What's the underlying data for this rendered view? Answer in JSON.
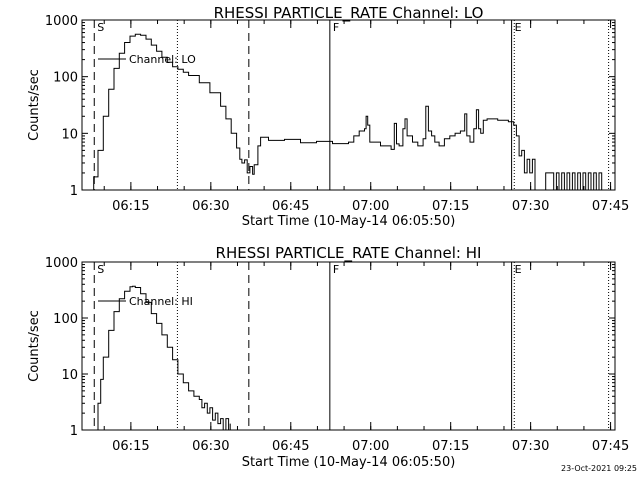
{
  "footer_timestamp": "23-Oct-2021 09:25",
  "chart_data": [
    {
      "type": "line",
      "title": "RHESSI PARTICLE_RATE Channel: LO",
      "xlabel": "Start Time (10-May-14 06:05:50)",
      "ylabel": "Counts/sec",
      "y_scale": "log",
      "ylim": [
        1,
        1000
      ],
      "x_units": "minutes after 06:05:50",
      "xlim": [
        0,
        100
      ],
      "x_ticks": [
        {
          "label": "06:15",
          "x": 9.17
        },
        {
          "label": "06:30",
          "x": 24.17
        },
        {
          "label": "06:45",
          "x": 39.17
        },
        {
          "label": "07:00",
          "x": 54.17
        },
        {
          "label": "07:15",
          "x": 69.17
        },
        {
          "label": "07:30",
          "x": 84.17
        },
        {
          "label": "07:45",
          "x": 99.17
        }
      ],
      "y_ticks": [
        {
          "label": "1",
          "v": 1
        },
        {
          "label": "10",
          "v": 10
        },
        {
          "label": "100",
          "v": 100
        },
        {
          "label": "1000",
          "v": 1000
        }
      ],
      "legend": "Channel: LO",
      "markers": [
        {
          "label": "S",
          "x": 2.3,
          "style": "dashed"
        },
        {
          "label": "",
          "x": 17.9,
          "style": "dotted"
        },
        {
          "label": "",
          "x": 31.3,
          "style": "dashed"
        },
        {
          "label": "F",
          "x": 46.5,
          "style": "solid"
        },
        {
          "label": "E",
          "x": 80.6,
          "style": "solid"
        },
        {
          "label": "",
          "x": 81.1,
          "style": "dotted"
        },
        {
          "label": "",
          "x": 98.8,
          "style": "dotted"
        }
      ],
      "x": [
        1.5,
        2.2,
        3.0,
        4.0,
        5.0,
        6.0,
        7.0,
        8.0,
        9.0,
        10.0,
        11.0,
        12.0,
        13.0,
        14.0,
        15.0,
        16.0,
        17.0,
        18.0,
        19.0,
        20.0,
        22.0,
        24.0,
        26.0,
        27.0,
        28.0,
        29.0,
        29.6,
        30.0,
        30.5,
        31.0,
        31.5,
        32.0,
        32.3,
        33.0,
        33.5,
        35.0,
        38.0,
        41.0,
        44.0,
        47.0,
        50.0,
        51.0,
        52.0,
        53.0,
        53.3,
        53.6,
        54.0,
        56.0,
        58.0,
        58.6,
        59.0,
        59.5,
        60.2,
        60.6,
        61.0,
        62.0,
        63.0,
        64.0,
        64.5,
        65.0,
        65.6,
        66.2,
        67.0,
        68.0,
        69.0,
        70.0,
        71.0,
        71.8,
        72.2,
        72.8,
        73.5,
        74.0,
        74.4,
        74.8,
        75.3,
        76.0,
        78.0,
        80.0,
        81.0,
        81.5,
        82.0,
        82.5,
        83.0,
        83.5,
        84.0,
        84.5,
        85.0,
        86.0,
        87.0,
        88.0,
        88.5,
        89.0,
        89.5,
        90.0,
        90.5,
        91.0,
        91.5,
        92.0,
        92.5,
        93.0,
        93.5,
        94.0,
        94.5,
        95.0,
        95.5,
        96.0,
        96.5,
        97.0,
        97.5,
        98.0
      ],
      "y": [
        1.0,
        1.7,
        5.0,
        20,
        60,
        140,
        260,
        400,
        520,
        560,
        540,
        460,
        360,
        280,
        220,
        180,
        150,
        135,
        120,
        105,
        78,
        52,
        30,
        18,
        10,
        5.5,
        3.5,
        3.0,
        3.4,
        2.0,
        2.6,
        1.9,
        2.8,
        6.0,
        8.5,
        7.5,
        7.8,
        6.8,
        7.2,
        6.6,
        7.0,
        9.0,
        11.0,
        12.0,
        20.0,
        14.0,
        7.0,
        6.0,
        5.2,
        15.0,
        6.5,
        6.0,
        12.0,
        18.0,
        9.0,
        7.0,
        6.0,
        8.0,
        30.0,
        11.0,
        9.0,
        7.0,
        6.0,
        8.0,
        9.0,
        10.0,
        11.0,
        22.0,
        9.0,
        7.0,
        12.0,
        26.0,
        12.0,
        10.0,
        17.0,
        18.0,
        17.0,
        16.0,
        14.0,
        9.0,
        4.0,
        5.0,
        2.0,
        3.5,
        2.0,
        3.5,
        1.0,
        1.0,
        2.0,
        2.0,
        1.0,
        2.0,
        1.0,
        2.0,
        1.0,
        2.0,
        1.0,
        2.0,
        1.0,
        2.0,
        1.0,
        2.0,
        1.0,
        2.0,
        1.0,
        2.0,
        1.0,
        2.0,
        1.0,
        1.0
      ]
    },
    {
      "type": "line",
      "title": "RHESSI PARTICLE_RATE Channel: HI",
      "xlabel": "Start Time (10-May-14 06:05:50)",
      "ylabel": "Counts/sec",
      "y_scale": "log",
      "ylim": [
        1,
        1000
      ],
      "x_units": "minutes after 06:05:50",
      "xlim": [
        0,
        100
      ],
      "x_ticks": [
        {
          "label": "06:15",
          "x": 9.17
        },
        {
          "label": "06:30",
          "x": 24.17
        },
        {
          "label": "06:45",
          "x": 39.17
        },
        {
          "label": "07:00",
          "x": 54.17
        },
        {
          "label": "07:15",
          "x": 69.17
        },
        {
          "label": "07:30",
          "x": 84.17
        },
        {
          "label": "07:45",
          "x": 99.17
        }
      ],
      "y_ticks": [
        {
          "label": "1",
          "v": 1
        },
        {
          "label": "10",
          "v": 10
        },
        {
          "label": "100",
          "v": 100
        },
        {
          "label": "1000",
          "v": 1000
        }
      ],
      "legend": "Channel: HI",
      "markers": [
        {
          "label": "S",
          "x": 2.3,
          "style": "dashed"
        },
        {
          "label": "",
          "x": 17.9,
          "style": "dotted"
        },
        {
          "label": "",
          "x": 31.3,
          "style": "dashed"
        },
        {
          "label": "F",
          "x": 46.5,
          "style": "solid"
        },
        {
          "label": "E",
          "x": 80.6,
          "style": "solid"
        },
        {
          "label": "",
          "x": 81.1,
          "style": "dotted"
        },
        {
          "label": "",
          "x": 98.8,
          "style": "dotted"
        }
      ],
      "x": [
        2.6,
        3.0,
        3.5,
        4.0,
        5.0,
        6.0,
        7.0,
        8.0,
        9.0,
        9.5,
        10.0,
        11.0,
        12.0,
        13.0,
        14.0,
        15.0,
        16.0,
        17.0,
        18.0,
        19.0,
        20.0,
        21.0,
        22.0,
        22.5,
        23.0,
        23.5,
        24.0,
        24.5,
        25.0,
        25.5,
        26.0,
        26.5,
        27.0,
        27.5,
        27.8
      ],
      "y": [
        1.0,
        3.0,
        8.0,
        20,
        60,
        130,
        220,
        300,
        360,
        370,
        350,
        270,
        190,
        120,
        80,
        50,
        30,
        18,
        10,
        7,
        5,
        4,
        3.5,
        2.5,
        3,
        2,
        2.5,
        1.5,
        2,
        1.3,
        1.6,
        1.0,
        1.6,
        1.0,
        1.3
      ]
    }
  ]
}
